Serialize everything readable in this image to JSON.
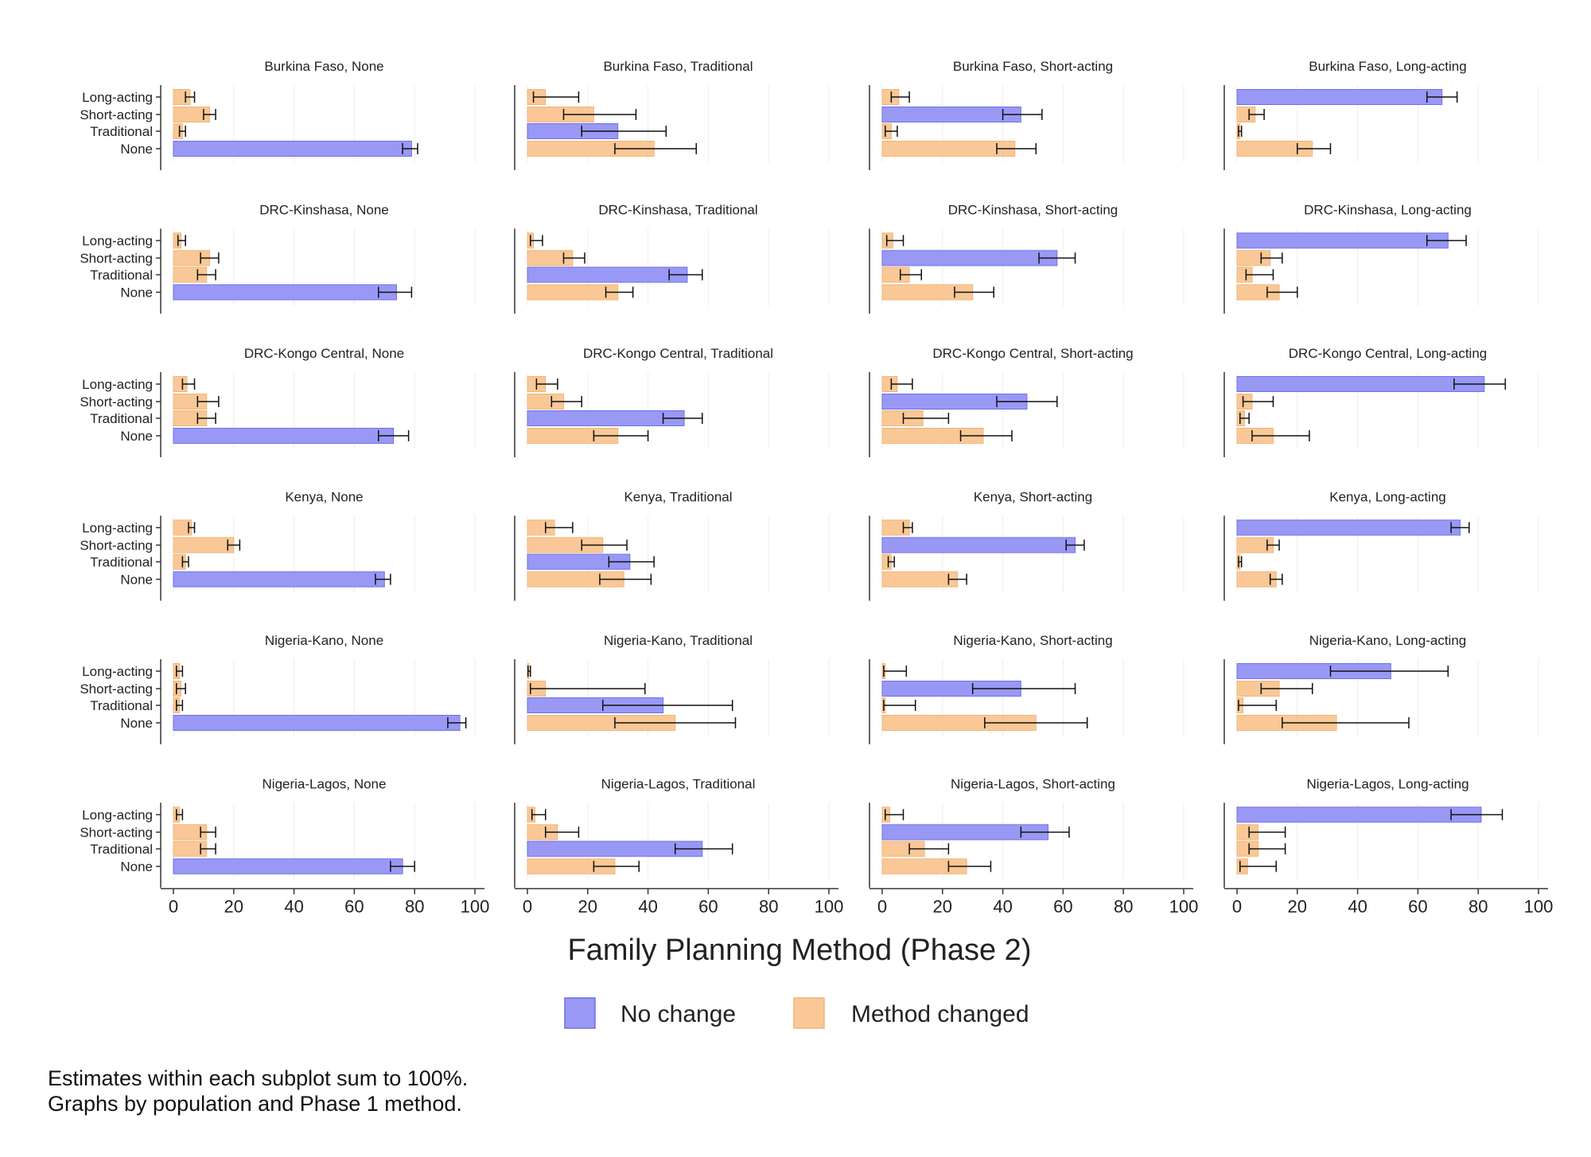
{
  "chart_data": {
    "type": "bar",
    "orientation": "horizontal",
    "layout": "small-multiples 6x4",
    "xlabel": "Family Planning Method (Phase 2)",
    "xlim": [
      0,
      100
    ],
    "xticks": [
      "0",
      "20",
      "40",
      "60",
      "80",
      "100"
    ],
    "categories": [
      "Long-acting",
      "Short-acting",
      "Traditional",
      "None"
    ],
    "legend": {
      "placement": "bottom",
      "entries": [
        {
          "name": "No change",
          "color": "#9999f5"
        },
        {
          "name": "Method changed",
          "color": "#f9c896"
        }
      ]
    },
    "grid": true,
    "error_bars": true,
    "panels": [
      {
        "title": "Burkina Faso, None",
        "values": [
          5.5,
          12,
          3,
          79
        ],
        "lo": [
          4,
          10,
          2,
          76
        ],
        "hi": [
          7,
          14,
          4,
          81
        ],
        "nochange": 3
      },
      {
        "title": "Burkina Faso, Traditional",
        "values": [
          6,
          22,
          30,
          42
        ],
        "lo": [
          2,
          12,
          18,
          29
        ],
        "hi": [
          17,
          36,
          46,
          56
        ],
        "nochange": 2
      },
      {
        "title": "Burkina Faso, Short-acting",
        "values": [
          5.5,
          46,
          3,
          44
        ],
        "lo": [
          3,
          40,
          1,
          38
        ],
        "hi": [
          9,
          53,
          5,
          51
        ],
        "nochange": 1
      },
      {
        "title": "Burkina Faso, Long-acting",
        "values": [
          68,
          6,
          1,
          25
        ],
        "lo": [
          63,
          4,
          0.5,
          20
        ],
        "hi": [
          73,
          9,
          1.5,
          31
        ],
        "nochange": 0
      },
      {
        "title": "DRC-Kinshasa, None",
        "values": [
          2.5,
          12,
          11,
          74
        ],
        "lo": [
          1.5,
          9,
          8,
          68
        ],
        "hi": [
          4,
          15,
          14,
          79
        ],
        "nochange": 3
      },
      {
        "title": "DRC-Kinshasa, Traditional",
        "values": [
          2,
          15,
          53,
          30
        ],
        "lo": [
          1,
          12,
          47,
          26
        ],
        "hi": [
          5,
          19,
          58,
          35
        ],
        "nochange": 2
      },
      {
        "title": "DRC-Kinshasa, Short-acting",
        "values": [
          3.5,
          58,
          9,
          30
        ],
        "lo": [
          1.5,
          52,
          6,
          24
        ],
        "hi": [
          7,
          64,
          13,
          37
        ],
        "nochange": 1
      },
      {
        "title": "DRC-Kinshasa, Long-acting",
        "values": [
          70,
          11,
          5,
          14
        ],
        "lo": [
          63,
          8,
          3,
          10
        ],
        "hi": [
          76,
          15,
          12,
          20
        ],
        "nochange": 0
      },
      {
        "title": "DRC-Kongo Central, None",
        "values": [
          4.5,
          11,
          11,
          73
        ],
        "lo": [
          3,
          8,
          8,
          68
        ],
        "hi": [
          7,
          15,
          14,
          78
        ],
        "nochange": 3
      },
      {
        "title": "DRC-Kongo Central, Traditional",
        "values": [
          6,
          12,
          52,
          30
        ],
        "lo": [
          3,
          8,
          45,
          22
        ],
        "hi": [
          10,
          18,
          58,
          40
        ],
        "nochange": 2
      },
      {
        "title": "DRC-Kongo Central, Short-acting",
        "values": [
          5,
          48,
          13.5,
          33.5
        ],
        "lo": [
          3,
          38,
          7,
          26
        ],
        "hi": [
          10,
          58,
          22,
          43
        ],
        "nochange": 1
      },
      {
        "title": "DRC-Kongo Central, Long-acting",
        "values": [
          82,
          5,
          2.5,
          12
        ],
        "lo": [
          72,
          2,
          1,
          5
        ],
        "hi": [
          89,
          12,
          4,
          24
        ],
        "nochange": 0
      },
      {
        "title": "Kenya, None",
        "values": [
          6,
          20,
          4,
          70
        ],
        "lo": [
          5,
          18,
          3,
          67
        ],
        "hi": [
          7,
          22,
          5,
          72
        ],
        "nochange": 3
      },
      {
        "title": "Kenya, Traditional",
        "values": [
          9,
          25,
          34,
          32
        ],
        "lo": [
          6,
          18,
          27,
          24
        ],
        "hi": [
          15,
          33,
          42,
          41
        ],
        "nochange": 2
      },
      {
        "title": "Kenya, Short-acting",
        "values": [
          9,
          64,
          3,
          25
        ],
        "lo": [
          7,
          61,
          2,
          22
        ],
        "hi": [
          10,
          67,
          4,
          28
        ],
        "nochange": 1
      },
      {
        "title": "Kenya, Long-acting",
        "values": [
          74,
          12,
          1,
          13
        ],
        "lo": [
          71,
          10,
          0.5,
          11
        ],
        "hi": [
          77,
          14,
          1.5,
          15
        ],
        "nochange": 0
      },
      {
        "title": "Nigeria-Kano, None",
        "values": [
          2,
          2.5,
          2,
          95
        ],
        "lo": [
          1,
          1,
          1,
          91
        ],
        "hi": [
          3,
          4,
          3,
          97
        ],
        "nochange": 3
      },
      {
        "title": "Nigeria-Kano, Traditional",
        "values": [
          0.5,
          6,
          45,
          49
        ],
        "lo": [
          0.2,
          1,
          25,
          29
        ],
        "hi": [
          1,
          39,
          68,
          69
        ],
        "nochange": 2
      },
      {
        "title": "Nigeria-Kano, Short-acting",
        "values": [
          1,
          46,
          1,
          51
        ],
        "lo": [
          0.5,
          30,
          0.5,
          34
        ],
        "hi": [
          8,
          64,
          11,
          68
        ],
        "nochange": 1
      },
      {
        "title": "Nigeria-Kano, Long-acting",
        "values": [
          51,
          14,
          2,
          33
        ],
        "lo": [
          31,
          8,
          0.5,
          15
        ],
        "hi": [
          70,
          25,
          13,
          57
        ],
        "nochange": 0
      },
      {
        "title": "Nigeria-Lagos, None",
        "values": [
          2,
          11,
          11,
          76
        ],
        "lo": [
          1,
          9,
          9,
          72
        ],
        "hi": [
          3,
          14,
          14,
          80
        ],
        "nochange": 3
      },
      {
        "title": "Nigeria-Lagos, Traditional",
        "values": [
          2.5,
          10,
          58,
          29
        ],
        "lo": [
          1.5,
          6,
          49,
          22
        ],
        "hi": [
          6,
          17,
          68,
          37
        ],
        "nochange": 2
      },
      {
        "title": "Nigeria-Lagos, Short-acting",
        "values": [
          2.5,
          55,
          14,
          28
        ],
        "lo": [
          1,
          46,
          9,
          22
        ],
        "hi": [
          7,
          62,
          22,
          36
        ],
        "nochange": 1
      },
      {
        "title": "Nigeria-Lagos, Long-acting",
        "values": [
          81,
          7,
          7,
          3.5
        ],
        "lo": [
          71,
          4,
          4,
          1
        ],
        "hi": [
          88,
          16,
          16,
          13
        ],
        "nochange": 0
      }
    ]
  },
  "notes": [
    "Estimates within each subplot sum to 100%.",
    "Graphs by population and Phase 1 method."
  ]
}
